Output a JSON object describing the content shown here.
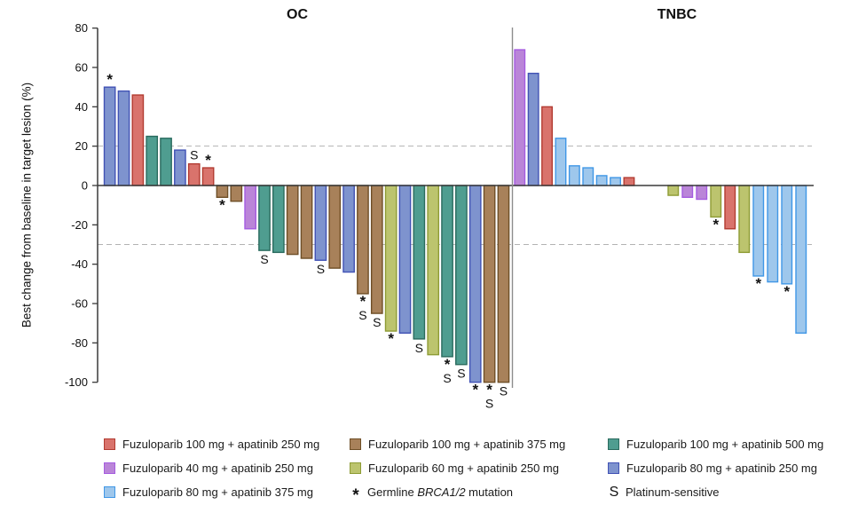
{
  "chart_data": {
    "type": "bar",
    "subtype": "waterfall",
    "ylabel": "Best change from baseline in target lesion (%)",
    "ylim": [
      -100,
      80
    ],
    "yticks": [
      80,
      60,
      40,
      20,
      0,
      -20,
      -40,
      -60,
      -80,
      -100
    ],
    "reference_lines": [
      20,
      -30
    ],
    "grid": "dashed-thresholds-only",
    "annotation_key": {
      "star": "Germline BRCA1/2 mutation",
      "S": "Platinum-sensitive"
    },
    "colors": {
      "red": {
        "fill": "#D9736C",
        "stroke": "#B23B31"
      },
      "purple": {
        "fill": "#BA85D8",
        "stroke": "#A55CE0"
      },
      "lightblue": {
        "fill": "#9EC7EC",
        "stroke": "#4097E6"
      },
      "brown": {
        "fill": "#A8815A",
        "stroke": "#6E4E26"
      },
      "yellowgreen": {
        "fill": "#BCC46E",
        "stroke": "#8E9C35"
      },
      "teal": {
        "fill": "#4F9D90",
        "stroke": "#2A6B5E"
      },
      "slateblue": {
        "fill": "#7E93CE",
        "stroke": "#4152B5"
      }
    },
    "panels": [
      {
        "name": "OC",
        "bar_width": 12.3,
        "groups": [
          {
            "start": 117.5,
            "pitch": 15.85,
            "bars": [
              {
                "value": 50,
                "color": "slateblue",
                "ann": "*"
              },
              {
                "value": 48,
                "color": "slateblue"
              },
              {
                "value": 46,
                "color": "red"
              },
              {
                "value": 25,
                "color": "teal"
              },
              {
                "value": 24,
                "color": "teal"
              },
              {
                "value": 18,
                "color": "slateblue"
              },
              {
                "value": 11,
                "color": "red",
                "ann": "S"
              },
              {
                "value": 9,
                "color": "red",
                "ann": "*"
              },
              {
                "value": -6,
                "color": "brown",
                "ann": "*"
              },
              {
                "value": -8,
                "color": "brown"
              },
              {
                "value": -22,
                "color": "purple"
              },
              {
                "value": -33,
                "color": "teal",
                "ann": "S"
              },
              {
                "value": -34,
                "color": "teal"
              },
              {
                "value": -35,
                "color": "brown"
              },
              {
                "value": -37,
                "color": "brown"
              },
              {
                "value": -38,
                "color": "slateblue",
                "ann": "S"
              },
              {
                "value": -42,
                "color": "brown"
              },
              {
                "value": -44,
                "color": "slateblue"
              },
              {
                "value": -55,
                "color": "brown",
                "ann": "*S"
              },
              {
                "value": -65,
                "color": "brown",
                "ann": "S"
              },
              {
                "value": -74,
                "color": "yellowgreen",
                "ann": "*"
              },
              {
                "value": -75,
                "color": "slateblue"
              },
              {
                "value": -78,
                "color": "teal",
                "ann": "S"
              },
              {
                "value": -86,
                "color": "yellowgreen"
              },
              {
                "value": -87,
                "color": "teal",
                "ann": "*S"
              },
              {
                "value": -91,
                "color": "teal",
                "ann": "S"
              },
              {
                "value": -100,
                "color": "slateblue",
                "ann": "*"
              },
              {
                "value": -100,
                "color": "brown",
                "ann": "*S"
              },
              {
                "value": -100,
                "color": "brown",
                "ann": "S"
              }
            ]
          }
        ]
      },
      {
        "name": "TNBC",
        "bar_width": 11.5,
        "groups": [
          {
            "start": 580,
            "pitch": 15.4,
            "bars": [
              {
                "value": 69,
                "color": "purple"
              },
              {
                "value": 57,
                "color": "slateblue"
              },
              {
                "value": 40,
                "color": "red"
              },
              {
                "value": 24,
                "color": "lightblue"
              },
              {
                "value": 10,
                "color": "lightblue"
              },
              {
                "value": 9,
                "color": "lightblue"
              },
              {
                "value": 5,
                "color": "lightblue"
              },
              {
                "value": 4,
                "color": "lightblue"
              },
              {
                "value": 4,
                "color": "red"
              }
            ]
          },
          {
            "start": 753,
            "pitch": 16,
            "bars": [
              {
                "value": -5,
                "color": "yellowgreen"
              },
              {
                "value": -6,
                "color": "purple"
              },
              {
                "value": -7,
                "color": "purple"
              },
              {
                "value": -16,
                "color": "yellowgreen",
                "ann": "*"
              },
              {
                "value": -22,
                "color": "red"
              },
              {
                "value": -34,
                "color": "yellowgreen"
              },
              {
                "value": -46,
                "color": "lightblue",
                "ann": "*"
              },
              {
                "value": -49,
                "color": "lightblue"
              },
              {
                "value": -50,
                "color": "lightblue",
                "ann": "*"
              },
              {
                "value": -75,
                "color": "lightblue"
              }
            ]
          }
        ]
      }
    ]
  },
  "legend": {
    "columns": [
      {
        "items": [
          {
            "swatch": "red",
            "label": "Fuzuloparib 100 mg + apatinib 250 mg"
          },
          {
            "swatch": "purple",
            "label": "Fuzuloparib 40 mg + apatinib 250 mg"
          },
          {
            "swatch": "lightblue",
            "label": "Fuzuloparib 80 mg + apatinib 375 mg"
          }
        ]
      },
      {
        "items": [
          {
            "swatch": "brown",
            "label": "Fuzuloparib 100 mg + apatinib 375 mg"
          },
          {
            "swatch": "yellowgreen",
            "label": "Fuzuloparib 60 mg + apatinib 250 mg"
          },
          {
            "symbol": "*",
            "label_prefix": "Germline ",
            "label_italic": "BRCA1/2",
            "label_suffix": " mutation"
          }
        ]
      },
      {
        "items": [
          {
            "swatch": "teal",
            "label": "Fuzuloparib 100 mg + apatinib 500 mg"
          },
          {
            "swatch": "slateblue",
            "label": "Fuzuloparib 80 mg + apatinib 250 mg"
          },
          {
            "symbol": "S",
            "label": "Platinum-sensitive"
          }
        ]
      }
    ]
  }
}
